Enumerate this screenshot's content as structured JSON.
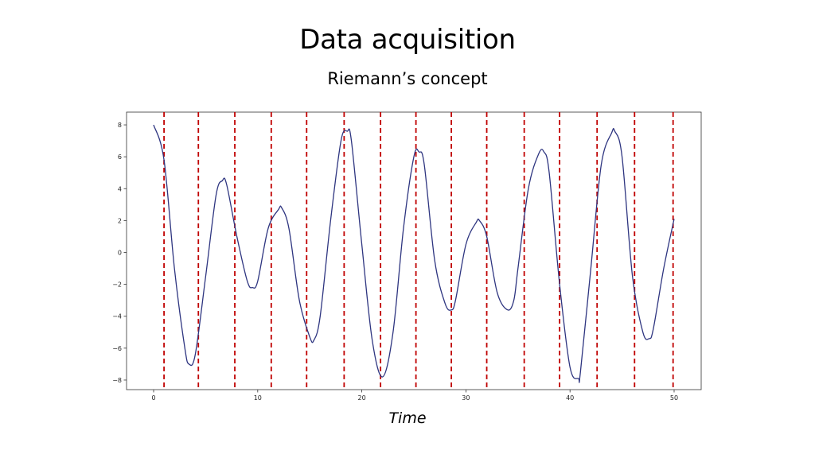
{
  "slide": {
    "title": "Data acquisition",
    "subtitle": "Riemann’s concept"
  },
  "chart_data": {
    "type": "line",
    "xlabel": "Time",
    "ylabel": "",
    "xlim": [
      -2.6,
      52.6
    ],
    "ylim": [
      -8.6,
      8.8
    ],
    "x_ticks": [
      0,
      10,
      20,
      30,
      40,
      50
    ],
    "y_ticks": [
      8,
      6,
      4,
      2,
      0,
      -2,
      -4,
      -6,
      -8
    ],
    "y_tick_labels": [
      "8",
      "6",
      "4",
      "2",
      "0",
      "−2",
      "−4",
      "−6",
      "−8"
    ],
    "grid": false,
    "series": [
      {
        "color": "#2e3580",
        "x": [
          0,
          1,
          2,
          3,
          3.4,
          4,
          5,
          6,
          6.6,
          7,
          8,
          9,
          9.5,
          10,
          11,
          12,
          12.3,
          13,
          14,
          15,
          15.4,
          16,
          17,
          18,
          18.6,
          19,
          20,
          21,
          22,
          23,
          24,
          25,
          25.5,
          26,
          27,
          28,
          28.6,
          29,
          30,
          31,
          31.3,
          32,
          33,
          34,
          34.6,
          35,
          36,
          37,
          37.5,
          38,
          39,
          40,
          40.8,
          41,
          42,
          43,
          44,
          44.3,
          45,
          46,
          47,
          47.6,
          48,
          49,
          50
        ],
        "y": [
          8.0,
          5.8,
          -1.0,
          -6.0,
          -7.0,
          -6.4,
          -1.5,
          3.6,
          4.5,
          4.3,
          1.0,
          -1.8,
          -2.2,
          -1.8,
          1.5,
          2.7,
          2.8,
          1.5,
          -3.0,
          -5.3,
          -5.5,
          -4.0,
          2.0,
          7.0,
          7.6,
          7.0,
          0.5,
          -5.5,
          -7.8,
          -5.0,
          1.5,
          6.0,
          6.3,
          5.5,
          -0.5,
          -3.2,
          -3.6,
          -3.0,
          0.5,
          1.9,
          2.0,
          1.0,
          -2.5,
          -3.6,
          -3.0,
          -1.0,
          4.0,
          6.2,
          6.3,
          5.0,
          -2.0,
          -7.2,
          -7.9,
          -7.5,
          -1.0,
          5.5,
          7.5,
          7.6,
          6.0,
          -1.5,
          -5.0,
          -5.4,
          -4.8,
          -1.0,
          2.1
        ]
      }
    ],
    "sample_lines": {
      "color": "#c00000",
      "x": [
        1.0,
        4.3,
        7.8,
        11.3,
        14.7,
        18.3,
        21.8,
        25.2,
        28.6,
        32.0,
        35.6,
        39.0,
        42.6,
        46.2,
        49.9
      ]
    }
  }
}
